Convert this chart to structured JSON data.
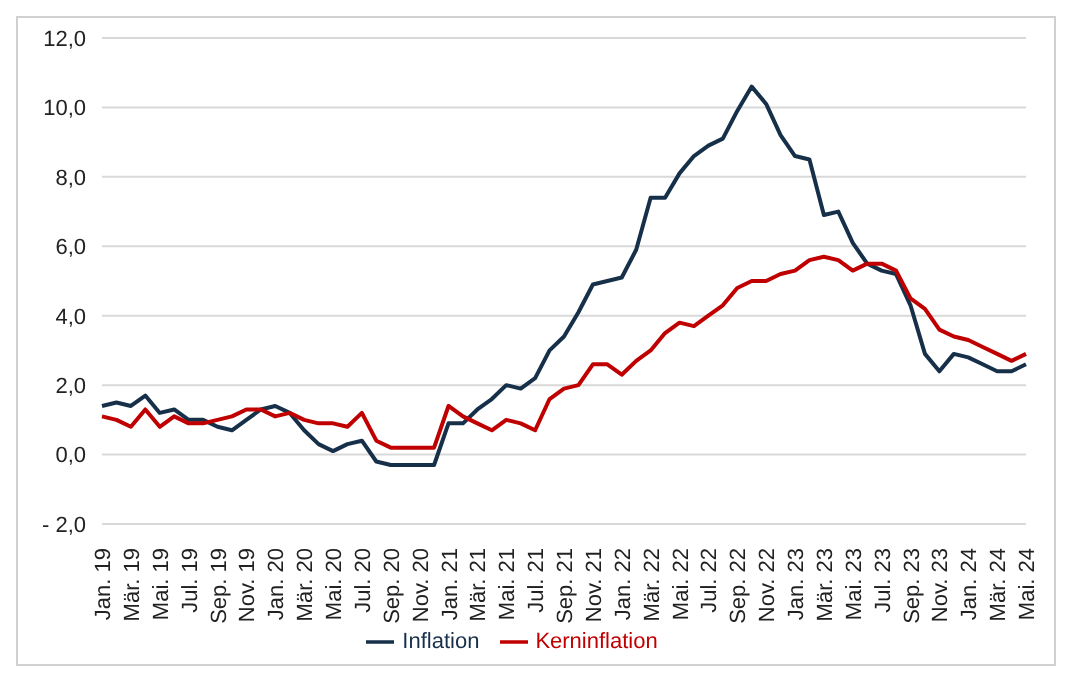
{
  "chart_data": {
    "type": "line",
    "categories": [
      "Jan. 19",
      null,
      "Mär. 19",
      null,
      "Mai. 19",
      null,
      "Jul. 19",
      null,
      "Sep. 19",
      null,
      "Nov. 19",
      null,
      "Jan. 20",
      null,
      "Mär. 20",
      null,
      "Mai. 20",
      null,
      "Jul. 20",
      null,
      "Sep. 20",
      null,
      "Nov. 20",
      null,
      "Jan. 21",
      null,
      "Mär. 21",
      null,
      "Mai. 21",
      null,
      "Jul. 21",
      null,
      "Sep. 21",
      null,
      "Nov. 21",
      null,
      "Jan. 22",
      null,
      "Mär. 22",
      null,
      "Mai. 22",
      null,
      "Jul. 22",
      null,
      "Sep. 22",
      null,
      "Nov. 22",
      null,
      "Jan. 23",
      null,
      "Mär. 23",
      null,
      "Mai. 23",
      null,
      "Jul. 23",
      null,
      "Sep. 23",
      null,
      "Nov. 23",
      null,
      "Jan. 24",
      null,
      "Mär. 24",
      null,
      "Mai. 24"
    ],
    "series": [
      {
        "name": "Inflation",
        "color": "#17304a",
        "values": [
          1.4,
          1.5,
          1.4,
          1.7,
          1.2,
          1.3,
          1.0,
          1.0,
          0.8,
          0.7,
          1.0,
          1.3,
          1.4,
          1.2,
          0.7,
          0.3,
          0.1,
          0.3,
          0.4,
          -0.2,
          -0.3,
          -0.3,
          -0.3,
          -0.3,
          0.9,
          0.9,
          1.3,
          1.6,
          2.0,
          1.9,
          2.2,
          3.0,
          3.4,
          4.1,
          4.9,
          5.0,
          5.1,
          5.9,
          7.4,
          7.4,
          8.1,
          8.6,
          8.9,
          9.1,
          9.9,
          10.6,
          10.1,
          9.2,
          8.6,
          8.5,
          6.9,
          7.0,
          6.1,
          5.5,
          5.3,
          5.2,
          4.3,
          2.9,
          2.4,
          2.9,
          2.8,
          2.6,
          2.4,
          2.4,
          2.6
        ]
      },
      {
        "name": "Kerninflation",
        "color": "#c00000",
        "values": [
          1.1,
          1.0,
          0.8,
          1.3,
          0.8,
          1.1,
          0.9,
          0.9,
          1.0,
          1.1,
          1.3,
          1.3,
          1.1,
          1.2,
          1.0,
          0.9,
          0.9,
          0.8,
          1.2,
          0.4,
          0.2,
          0.2,
          0.2,
          0.2,
          1.4,
          1.1,
          0.9,
          0.7,
          1.0,
          0.9,
          0.7,
          1.6,
          1.9,
          2.0,
          2.6,
          2.6,
          2.3,
          2.7,
          3.0,
          3.5,
          3.8,
          3.7,
          4.0,
          4.3,
          4.8,
          5.0,
          5.0,
          5.2,
          5.3,
          5.6,
          5.7,
          5.6,
          5.3,
          5.5,
          5.5,
          5.3,
          4.5,
          4.2,
          3.6,
          3.4,
          3.3,
          3.1,
          2.9,
          2.7,
          2.9
        ]
      }
    ],
    "ylim": [
      -2,
      12
    ],
    "yticks": [
      {
        "value": -2,
        "label": "- 2,0"
      },
      {
        "value": 0,
        "label": "0,0"
      },
      {
        "value": 2,
        "label": "2,0"
      },
      {
        "value": 4,
        "label": "4,0"
      },
      {
        "value": 6,
        "label": "6,0"
      },
      {
        "value": 8,
        "label": "8,0"
      },
      {
        "value": 10,
        "label": "10,0"
      },
      {
        "value": 12,
        "label": "12,0"
      }
    ],
    "grid": "y",
    "legend": "bottom",
    "marker": "none",
    "line_style": "solid"
  }
}
